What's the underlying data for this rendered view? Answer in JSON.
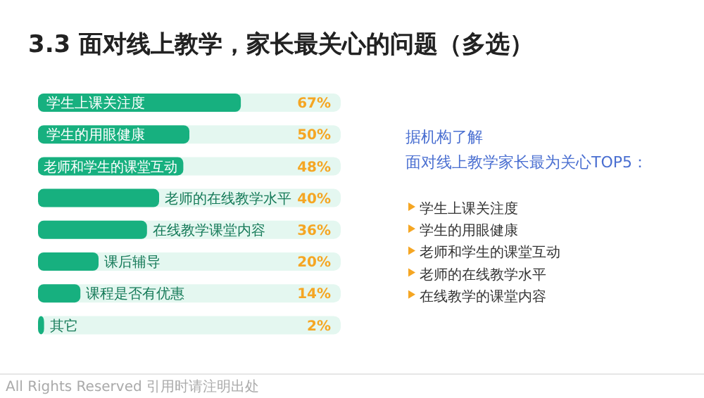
{
  "chart_data": [
    {
      "type": "bar",
      "orientation": "horizontal",
      "title": "3.3 面对线上教学，家长最关心的问题（多选）",
      "categories": [
        "学生上课关注度",
        "学生的用眼健康",
        "老师和学生的课堂互动",
        "老师的在线教学水平",
        "在线教学课堂内容",
        "课后辅导",
        "课程是否有优惠",
        "其它"
      ],
      "values": [
        67,
        50,
        48,
        40,
        36,
        20,
        14,
        2
      ],
      "value_labels": [
        "67%",
        "50%",
        "48%",
        "40%",
        "36%",
        "20%",
        "14%",
        "2%"
      ],
      "color": "#17b07f",
      "annotations": [
        "All Rights Reserved 引用时请注明出处"
      ]
    },
    {
      "type": "other",
      "title": "据机构了解",
      "subtitle": "面对线上教学家长最为关心TOP5：",
      "annotations": [
        "学生上课关注度",
        "学生的用眼健康",
        "老师和学生的课堂互动",
        "老师的在线教学水平",
        "在线教学的课堂内容"
      ]
    }
  ]
}
